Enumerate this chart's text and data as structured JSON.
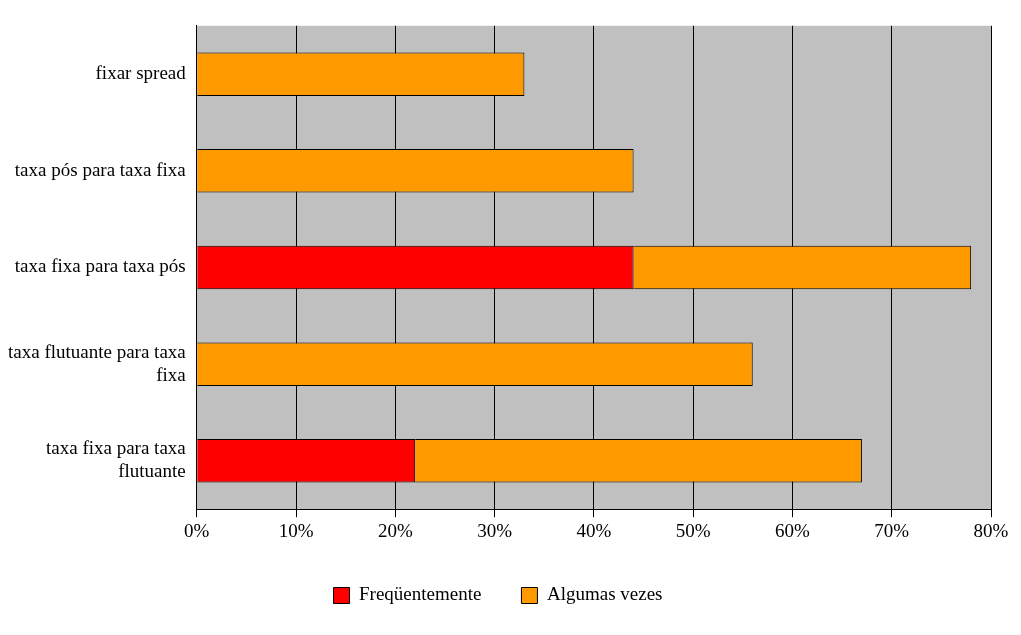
{
  "chart_data": {
    "type": "bar",
    "orientation": "horizontal",
    "stacked": true,
    "categories": [
      "fixar spread",
      "taxa pós para taxa fixa",
      "taxa fixa para taxa pós",
      "taxa flutuante para taxa fixa",
      "taxa fixa para taxa flutuante"
    ],
    "series": [
      {
        "name": "Freqüentemente",
        "color": "#ff0000",
        "values": [
          0,
          0,
          44,
          0,
          22
        ]
      },
      {
        "name": "Algumas vezes",
        "color": "#ff9900",
        "values": [
          33,
          44,
          34,
          56,
          45
        ]
      }
    ],
    "xlim": [
      0,
      80
    ],
    "xticks": [
      {
        "value": 0,
        "label": "0%"
      },
      {
        "value": 10,
        "label": "10%"
      },
      {
        "value": 20,
        "label": "20%"
      },
      {
        "value": 30,
        "label": "30%"
      },
      {
        "value": 40,
        "label": "40%"
      },
      {
        "value": 50,
        "label": "50%"
      },
      {
        "value": 60,
        "label": "60%"
      },
      {
        "value": 70,
        "label": "70%"
      },
      {
        "value": 80,
        "label": "80%"
      }
    ],
    "grid": "x",
    "legend": "bottom"
  }
}
